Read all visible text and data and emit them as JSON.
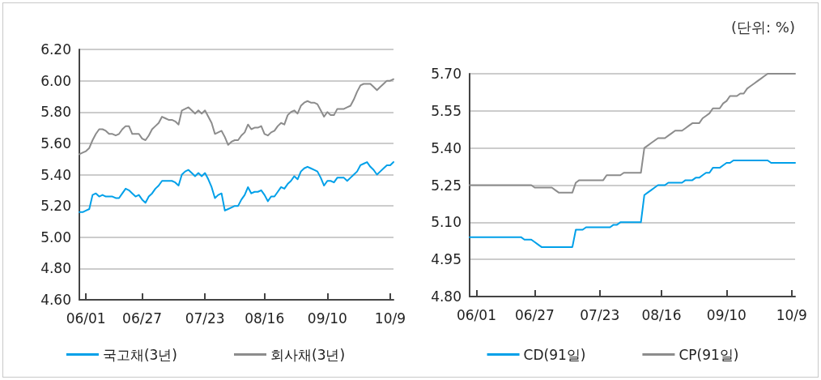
{
  "chart_data": [
    {
      "type": "line",
      "categories": [
        null,
        null,
        "06/01",
        null,
        null,
        null,
        null,
        null,
        null,
        null,
        null,
        null,
        null,
        null,
        null,
        null,
        null,
        null,
        null,
        "06/27",
        null,
        null,
        null,
        null,
        null,
        null,
        null,
        null,
        null,
        null,
        null,
        null,
        null,
        null,
        null,
        null,
        null,
        null,
        "07/23",
        null,
        null,
        null,
        null,
        null,
        null,
        null,
        null,
        null,
        null,
        null,
        null,
        null,
        null,
        null,
        null,
        null,
        "08/16",
        null,
        null,
        null,
        null,
        null,
        null,
        null,
        null,
        null,
        null,
        null,
        null,
        null,
        null,
        null,
        null,
        null,
        null,
        "09/10",
        null,
        null,
        null,
        null,
        null,
        null,
        null,
        null,
        null,
        null,
        null,
        null,
        null,
        null,
        null,
        null,
        null,
        null,
        "10/9",
        null
      ],
      "ylim": [
        4.6,
        6.2
      ],
      "yticks": [
        {
          "value": 4.6,
          "label": "4.60"
        },
        {
          "value": 4.8,
          "label": "4.80"
        },
        {
          "value": 5.0,
          "label": "5.00"
        },
        {
          "value": 5.2,
          "label": "5.20"
        },
        {
          "value": 5.4,
          "label": "5.40"
        },
        {
          "value": 5.6,
          "label": "5.60"
        },
        {
          "value": 5.8,
          "label": "5.80"
        },
        {
          "value": 6.0,
          "label": "6.00"
        },
        {
          "value": 6.2,
          "label": "6.20"
        }
      ],
      "grid": "y",
      "legend": "bottom",
      "marker": "none",
      "line_style": "solid",
      "series": [
        {
          "name": "국고채(3년)",
          "color": "#00a0e9",
          "values": [
            5.16,
            5.16,
            5.17,
            5.18,
            5.27,
            5.28,
            5.26,
            5.27,
            5.26,
            5.26,
            5.26,
            5.25,
            5.25,
            5.28,
            5.31,
            5.3,
            5.28,
            5.26,
            5.27,
            5.24,
            5.22,
            5.26,
            5.28,
            5.31,
            5.33,
            5.36,
            5.36,
            5.36,
            5.36,
            5.35,
            5.33,
            5.4,
            5.42,
            5.43,
            5.41,
            5.39,
            5.41,
            5.39,
            5.41,
            5.37,
            5.32,
            5.25,
            5.27,
            5.28,
            5.17,
            5.18,
            5.19,
            5.2,
            5.2,
            5.24,
            5.27,
            5.32,
            5.28,
            5.29,
            5.29,
            5.3,
            5.27,
            5.23,
            5.26,
            5.26,
            5.29,
            5.32,
            5.31,
            5.34,
            5.36,
            5.39,
            5.37,
            5.42,
            5.44,
            5.45,
            5.44,
            5.43,
            5.42,
            5.38,
            5.33,
            5.36,
            5.36,
            5.35,
            5.38,
            5.38,
            5.38,
            5.36,
            5.38,
            5.4,
            5.42,
            5.46,
            5.47,
            5.48,
            5.45,
            5.43,
            5.4,
            5.42,
            5.44,
            5.46,
            5.46,
            5.48
          ]
        },
        {
          "name": "회사채(3년)",
          "color": "#8c8c8c",
          "values": [
            5.53,
            5.54,
            5.55,
            5.57,
            5.62,
            5.66,
            5.69,
            5.69,
            5.68,
            5.66,
            5.66,
            5.65,
            5.66,
            5.69,
            5.71,
            5.71,
            5.66,
            5.66,
            5.66,
            5.63,
            5.62,
            5.65,
            5.69,
            5.71,
            5.73,
            5.77,
            5.76,
            5.75,
            5.75,
            5.74,
            5.72,
            5.81,
            5.82,
            5.83,
            5.81,
            5.79,
            5.81,
            5.79,
            5.81,
            5.77,
            5.73,
            5.66,
            5.67,
            5.68,
            5.64,
            5.59,
            5.61,
            5.62,
            5.62,
            5.65,
            5.67,
            5.72,
            5.69,
            5.7,
            5.7,
            5.71,
            5.66,
            5.65,
            5.67,
            5.68,
            5.71,
            5.73,
            5.72,
            5.78,
            5.8,
            5.81,
            5.79,
            5.84,
            5.86,
            5.87,
            5.86,
            5.86,
            5.85,
            5.81,
            5.77,
            5.8,
            5.78,
            5.78,
            5.82,
            5.82,
            5.82,
            5.83,
            5.84,
            5.88,
            5.93,
            5.97,
            5.98,
            5.98,
            5.98,
            5.96,
            5.94,
            5.96,
            5.98,
            6.0,
            6.0,
            6.01
          ]
        }
      ]
    },
    {
      "type": "line",
      "categories": [
        null,
        null,
        "06/01",
        null,
        null,
        null,
        null,
        null,
        null,
        null,
        null,
        null,
        null,
        null,
        null,
        null,
        null,
        null,
        null,
        "06/27",
        null,
        null,
        null,
        null,
        null,
        null,
        null,
        null,
        null,
        null,
        null,
        null,
        null,
        null,
        null,
        null,
        null,
        null,
        "07/23",
        null,
        null,
        null,
        null,
        null,
        null,
        null,
        null,
        null,
        null,
        null,
        null,
        null,
        null,
        null,
        null,
        null,
        "08/16",
        null,
        null,
        null,
        null,
        null,
        null,
        null,
        null,
        null,
        null,
        null,
        null,
        null,
        null,
        null,
        null,
        null,
        null,
        "09/10",
        null,
        null,
        null,
        null,
        null,
        null,
        null,
        null,
        null,
        null,
        null,
        null,
        null,
        null,
        null,
        null,
        null,
        null,
        "10/9",
        null
      ],
      "ylim": [
        4.8,
        5.7
      ],
      "yticks": [
        {
          "value": 4.8,
          "label": "4.80"
        },
        {
          "value": 4.95,
          "label": "4.95"
        },
        {
          "value": 5.1,
          "label": "5.10"
        },
        {
          "value": 5.25,
          "label": "5.25"
        },
        {
          "value": 5.4,
          "label": "5.40"
        },
        {
          "value": 5.55,
          "label": "5.55"
        },
        {
          "value": 5.7,
          "label": "5.70"
        }
      ],
      "grid": "y",
      "legend": "bottom",
      "marker": "none",
      "line_style": "solid",
      "annotations": [
        "(단위: %)"
      ],
      "series": [
        {
          "name": "CD(91일)",
          "color": "#00a0e9",
          "values": [
            5.04,
            5.04,
            5.04,
            5.04,
            5.04,
            5.04,
            5.04,
            5.04,
            5.04,
            5.04,
            5.04,
            5.04,
            5.04,
            5.04,
            5.04,
            5.04,
            5.03,
            5.03,
            5.03,
            5.02,
            5.01,
            5.0,
            5.0,
            5.0,
            5.0,
            5.0,
            5.0,
            5.0,
            5.0,
            5.0,
            5.0,
            5.07,
            5.07,
            5.07,
            5.08,
            5.08,
            5.08,
            5.08,
            5.08,
            5.08,
            5.08,
            5.08,
            5.09,
            5.09,
            5.1,
            5.1,
            5.1,
            5.1,
            5.1,
            5.1,
            5.1,
            5.21,
            5.22,
            5.23,
            5.24,
            5.25,
            5.25,
            5.25,
            5.26,
            5.26,
            5.26,
            5.26,
            5.26,
            5.27,
            5.27,
            5.27,
            5.28,
            5.28,
            5.29,
            5.3,
            5.3,
            5.32,
            5.32,
            5.32,
            5.33,
            5.34,
            5.34,
            5.35,
            5.35,
            5.35,
            5.35,
            5.35,
            5.35,
            5.35,
            5.35,
            5.35,
            5.35,
            5.35,
            5.34,
            5.34,
            5.34,
            5.34,
            5.34,
            5.34,
            5.34,
            5.34
          ]
        },
        {
          "name": "CP(91일)",
          "color": "#8c8c8c",
          "values": [
            5.25,
            5.25,
            5.25,
            5.25,
            5.25,
            5.25,
            5.25,
            5.25,
            5.25,
            5.25,
            5.25,
            5.25,
            5.25,
            5.25,
            5.25,
            5.25,
            5.25,
            5.25,
            5.25,
            5.24,
            5.24,
            5.24,
            5.24,
            5.24,
            5.24,
            5.23,
            5.22,
            5.22,
            5.22,
            5.22,
            5.22,
            5.26,
            5.27,
            5.27,
            5.27,
            5.27,
            5.27,
            5.27,
            5.27,
            5.27,
            5.29,
            5.29,
            5.29,
            5.29,
            5.29,
            5.3,
            5.3,
            5.3,
            5.3,
            5.3,
            5.3,
            5.4,
            5.41,
            5.42,
            5.43,
            5.44,
            5.44,
            5.44,
            5.45,
            5.46,
            5.47,
            5.47,
            5.47,
            5.48,
            5.49,
            5.5,
            5.5,
            5.5,
            5.52,
            5.53,
            5.54,
            5.56,
            5.56,
            5.56,
            5.58,
            5.59,
            5.61,
            5.61,
            5.61,
            5.62,
            5.62,
            5.64,
            5.65,
            5.66,
            5.67,
            5.68,
            5.69,
            5.7,
            5.7,
            5.7,
            5.7,
            5.7,
            5.7,
            5.7,
            5.7,
            5.7
          ]
        }
      ]
    }
  ]
}
